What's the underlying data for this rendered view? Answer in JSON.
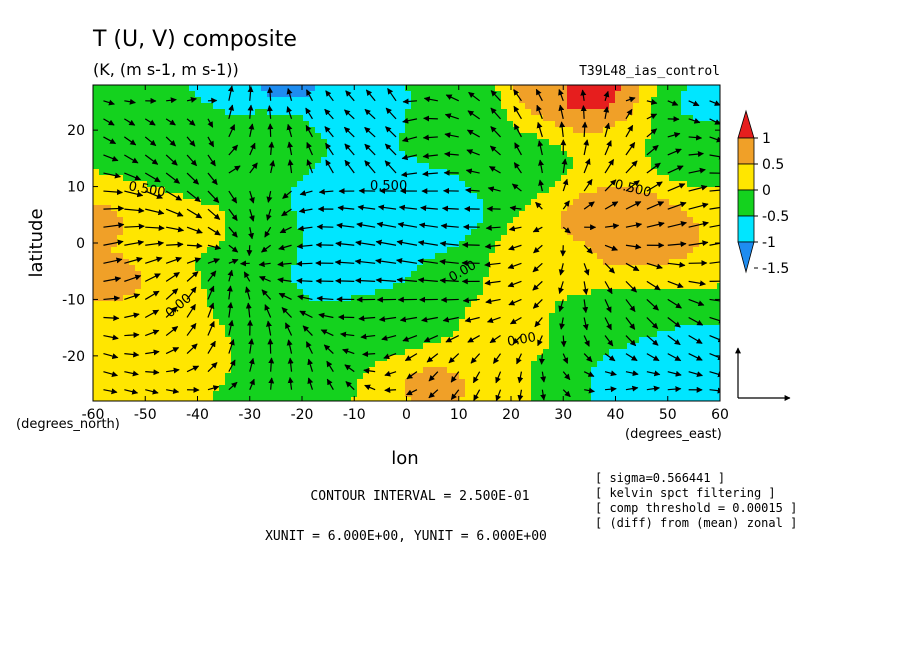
{
  "chart_data": {
    "type": "contour",
    "title": "T (U, V) composite",
    "subtitle": "(K, (m s-1, m s-1))",
    "experiment": "T39L48_ias_control",
    "xlabel": "lon",
    "ylabel": "latitude",
    "x_unit_label": "(degrees_east)",
    "y_unit_label": "(degrees_north)",
    "xlim": [
      -60,
      60
    ],
    "ylim": [
      -28,
      28
    ],
    "x_ticks": [
      -60,
      -50,
      -40,
      -30,
      -20,
      -10,
      0,
      10,
      20,
      30,
      40,
      50,
      60
    ],
    "y_ticks": [
      -20,
      -10,
      0,
      10,
      20
    ],
    "contour_interval": "CONTOUR INTERVAL = 2.500E-01",
    "vector_units": "XUNIT = 6.000E+00, YUNIT = 6.000E+00",
    "colorbar": {
      "levels": [
        -1.5,
        -1,
        -0.5,
        0,
        0.5,
        1
      ],
      "labels": [
        "1",
        "0.5",
        "0",
        "-0.5",
        "-1",
        "-1.5"
      ],
      "colors": [
        "#1e8cf0",
        "#00e6ff",
        "#14d21e",
        "#ffe600",
        "#f0a028",
        "#e61e1e"
      ]
    },
    "contour_labels": [
      "0.500",
      "0.500",
      "0.500",
      "0.00",
      "0.00",
      "0.00"
    ],
    "notes": [
      "[ sigma=0.566441 ]",
      "[ kelvin spct filtering ]",
      "[ comp threshold = 0.00015 ]",
      "[ (diff) from (mean) zonal ]"
    ],
    "anomalies": [
      {
        "lon": -60,
        "lat": 3,
        "value": 0.55
      },
      {
        "lon": -57,
        "lat": -6,
        "value": 0.55
      },
      {
        "lon": -38,
        "lat": 2,
        "value": 0.1
      },
      {
        "lon": -30,
        "lat": 0,
        "value": -0.3
      },
      {
        "lon": -45,
        "lat": -20,
        "value": 0.1
      },
      {
        "lon": -50,
        "lat": 19,
        "value": -0.3
      },
      {
        "lon": -25,
        "lat": 20,
        "value": -0.35
      },
      {
        "lon": -10,
        "lat": 5,
        "value": -0.85
      },
      {
        "lon": -12,
        "lat": -4,
        "value": -0.75
      },
      {
        "lon": 5,
        "lat": 6,
        "value": -0.8
      },
      {
        "lon": -5,
        "lat": -14,
        "value": -0.4
      },
      {
        "lon": -10,
        "lat": 25,
        "value": -0.7
      },
      {
        "lon": -22,
        "lat": 28,
        "value": -1.1
      },
      {
        "lon": 10,
        "lat": 25,
        "value": -0.4
      },
      {
        "lon": 28,
        "lat": 28,
        "value": 0.75
      },
      {
        "lon": 34,
        "lat": 27,
        "value": 1.05
      },
      {
        "lon": 20,
        "lat": 14,
        "value": -0.3
      },
      {
        "lon": 42,
        "lat": 2,
        "value": 0.7
      },
      {
        "lon": 40,
        "lat": 3,
        "value": 0.9
      },
      {
        "lon": 30,
        "lat": -2,
        "value": 0.4
      },
      {
        "lon": 55,
        "lat": 15,
        "value": -0.1
      },
      {
        "lon": 58,
        "lat": 25,
        "value": -0.6
      },
      {
        "lon": 20,
        "lat": -15,
        "value": 0.1
      },
      {
        "lon": 40,
        "lat": -14,
        "value": -0.35
      },
      {
        "lon": 48,
        "lat": -22,
        "value": -0.8
      },
      {
        "lon": 58,
        "lat": -26,
        "value": -1.0
      },
      {
        "lon": 5,
        "lat": -25,
        "value": 0.55
      },
      {
        "lon": -20,
        "lat": -24,
        "value": -0.15
      }
    ]
  }
}
